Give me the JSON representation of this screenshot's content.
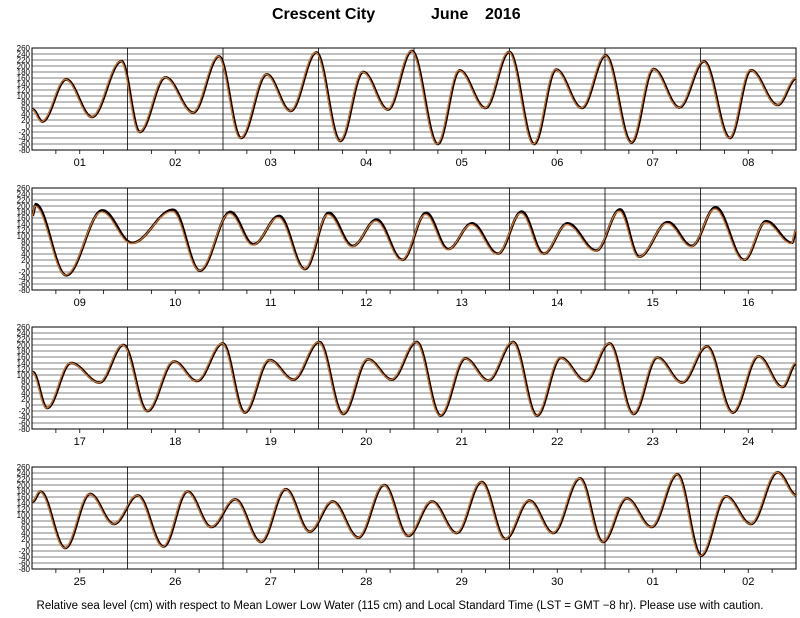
{
  "title": {
    "city": "Crescent City",
    "month": "June",
    "year": "2016"
  },
  "footer": "Relative sea level (cm) with respect to Mean Lower Low Water (115 cm) and Local Standard Time (LST = GMT −8 hr). Please use with caution.",
  "colors": {
    "observed": "#000000",
    "predicted": "#e0701e",
    "grid": "#000000"
  },
  "chart_data": {
    "type": "line",
    "ylim": [
      -80,
      260
    ],
    "yticks": [
      260,
      240,
      220,
      200,
      180,
      160,
      140,
      120,
      100,
      80,
      60,
      40,
      20,
      0,
      -20,
      -40,
      -60,
      -80
    ],
    "grid": true,
    "series_names": [
      "observed",
      "predicted"
    ],
    "panels": [
      {
        "days": [
          "01",
          "02",
          "03",
          "04",
          "05",
          "06",
          "07",
          "08"
        ],
        "highs": [
          [
            0.35,
            155
          ],
          [
            0.93,
            216
          ],
          [
            1.39,
            162
          ],
          [
            1.95,
            232
          ],
          [
            2.45,
            172
          ],
          [
            2.97,
            245
          ],
          [
            3.46,
            180
          ],
          [
            3.97,
            250
          ],
          [
            4.47,
            185
          ],
          [
            4.99,
            247
          ],
          [
            5.48,
            188
          ],
          [
            6.0,
            235
          ],
          [
            6.5,
            190
          ],
          [
            7.03,
            215
          ],
          [
            7.52,
            186
          ],
          [
            8.0,
            160
          ]
        ],
        "lows": [
          [
            0.1,
            15
          ],
          [
            0.62,
            30
          ],
          [
            1.12,
            -20
          ],
          [
            1.68,
            45
          ],
          [
            2.18,
            -40
          ],
          [
            2.7,
            50
          ],
          [
            3.22,
            -50
          ],
          [
            3.72,
            55
          ],
          [
            4.24,
            -60
          ],
          [
            4.74,
            60
          ],
          [
            5.25,
            -60
          ],
          [
            5.75,
            60
          ],
          [
            6.27,
            -55
          ],
          [
            6.77,
            62
          ],
          [
            7.3,
            -40
          ],
          [
            7.8,
            70
          ]
        ],
        "start": [
          0.0,
          55
        ],
        "obs_shift": 0.008,
        "obs_scale": 1.0
      },
      {
        "days": [
          "09",
          "10",
          "11",
          "12",
          "13",
          "14",
          "15",
          "16"
        ],
        "highs": [
          [
            0.03,
            200
          ],
          [
            0.73,
            180
          ],
          [
            1.47,
            182
          ],
          [
            2.07,
            175
          ],
          [
            2.58,
            162
          ],
          [
            3.1,
            172
          ],
          [
            3.6,
            150
          ],
          [
            4.12,
            172
          ],
          [
            4.6,
            138
          ],
          [
            5.12,
            176
          ],
          [
            5.6,
            138
          ],
          [
            6.15,
            183
          ],
          [
            6.65,
            142
          ],
          [
            7.15,
            190
          ],
          [
            7.68,
            145
          ],
          [
            8.2,
            196
          ]
        ],
        "lows": [
          [
            0.35,
            -30
          ],
          [
            1.04,
            75
          ],
          [
            1.75,
            -15
          ],
          [
            2.31,
            70
          ],
          [
            2.85,
            -10
          ],
          [
            3.35,
            65
          ],
          [
            3.87,
            20
          ],
          [
            4.35,
            55
          ],
          [
            4.87,
            40
          ],
          [
            5.35,
            40
          ],
          [
            5.9,
            50
          ],
          [
            6.35,
            30
          ],
          [
            6.9,
            65
          ],
          [
            7.45,
            20
          ],
          [
            7.95,
            75
          ]
        ],
        "start": [
          0.0,
          165
        ],
        "end": [
          8.0,
          120
        ],
        "obs_shift": 0.008,
        "obs_scale": 1.03
      },
      {
        "days": [
          "17",
          "18",
          "19",
          "20",
          "21",
          "22",
          "23",
          "24"
        ],
        "highs": [
          [
            0.4,
            140
          ],
          [
            0.95,
            200
          ],
          [
            1.48,
            145
          ],
          [
            1.99,
            205
          ],
          [
            2.48,
            150
          ],
          [
            3.0,
            210
          ],
          [
            3.51,
            152
          ],
          [
            4.02,
            210
          ],
          [
            4.53,
            155
          ],
          [
            5.03,
            210
          ],
          [
            5.53,
            157
          ],
          [
            6.04,
            205
          ],
          [
            6.54,
            158
          ],
          [
            7.06,
            195
          ],
          [
            7.6,
            162
          ]
        ],
        "lows": [
          [
            0.15,
            -10
          ],
          [
            0.7,
            75
          ],
          [
            1.2,
            -20
          ],
          [
            1.72,
            80
          ],
          [
            2.22,
            -25
          ],
          [
            2.73,
            85
          ],
          [
            3.25,
            -30
          ],
          [
            3.76,
            85
          ],
          [
            4.27,
            -35
          ],
          [
            4.77,
            82
          ],
          [
            5.28,
            -35
          ],
          [
            5.79,
            80
          ],
          [
            6.29,
            -30
          ],
          [
            6.8,
            75
          ],
          [
            7.33,
            -25
          ],
          [
            7.85,
            60
          ]
        ],
        "start": [
          0.0,
          110
        ],
        "end": [
          8.0,
          140
        ],
        "obs_shift": 0.008,
        "obs_scale": 1.0
      },
      {
        "days": [
          "25",
          "26",
          "27",
          "28",
          "29",
          "30",
          "01",
          "02"
        ],
        "highs": [
          [
            0.08,
            178
          ],
          [
            0.6,
            170
          ],
          [
            1.1,
            165
          ],
          [
            1.62,
            178
          ],
          [
            2.12,
            152
          ],
          [
            2.65,
            186
          ],
          [
            3.14,
            145
          ],
          [
            3.68,
            200
          ],
          [
            4.18,
            145
          ],
          [
            4.7,
            210
          ],
          [
            5.2,
            148
          ],
          [
            5.73,
            222
          ],
          [
            6.22,
            155
          ],
          [
            6.75,
            235
          ],
          [
            7.26,
            162
          ],
          [
            7.8,
            242
          ]
        ],
        "lows": [
          [
            0.34,
            -10
          ],
          [
            0.85,
            70
          ],
          [
            1.37,
            -5
          ],
          [
            1.87,
            60
          ],
          [
            2.39,
            10
          ],
          [
            2.9,
            45
          ],
          [
            3.41,
            25
          ],
          [
            3.93,
            30
          ],
          [
            4.44,
            40
          ],
          [
            4.95,
            20
          ],
          [
            5.45,
            40
          ],
          [
            5.97,
            10
          ],
          [
            6.48,
            60
          ],
          [
            7.0,
            -35
          ],
          [
            7.52,
            70
          ]
        ],
        "start": [
          0.0,
          145
        ],
        "end": [
          8.0,
          165
        ],
        "obs_shift": 0.008,
        "obs_scale": 1.0
      }
    ]
  }
}
